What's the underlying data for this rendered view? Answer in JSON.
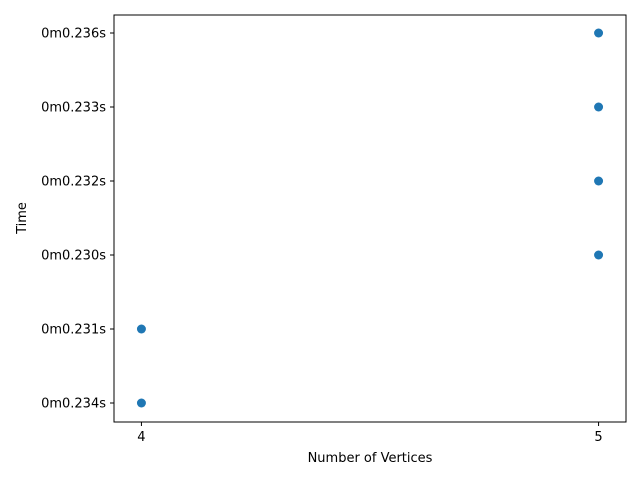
{
  "chart_data": {
    "type": "scatter",
    "title": "",
    "xlabel": "Number of Vertices",
    "ylabel": "Time",
    "x_ticks": [
      "4",
      "5"
    ],
    "y_categories": [
      "0m0.234s",
      "0m0.231s",
      "0m0.230s",
      "0m0.232s",
      "0m0.233s",
      "0m0.236s"
    ],
    "points": [
      {
        "x": 4,
        "y": "0m0.234s"
      },
      {
        "x": 4,
        "y": "0m0.231s"
      },
      {
        "x": 5,
        "y": "0m0.230s"
      },
      {
        "x": 5,
        "y": "0m0.232s"
      },
      {
        "x": 5,
        "y": "0m0.233s"
      },
      {
        "x": 5,
        "y": "0m0.236s"
      }
    ],
    "xlim": [
      3.94,
      5.06
    ],
    "grid": false,
    "marker_color": "#1f77b4"
  }
}
